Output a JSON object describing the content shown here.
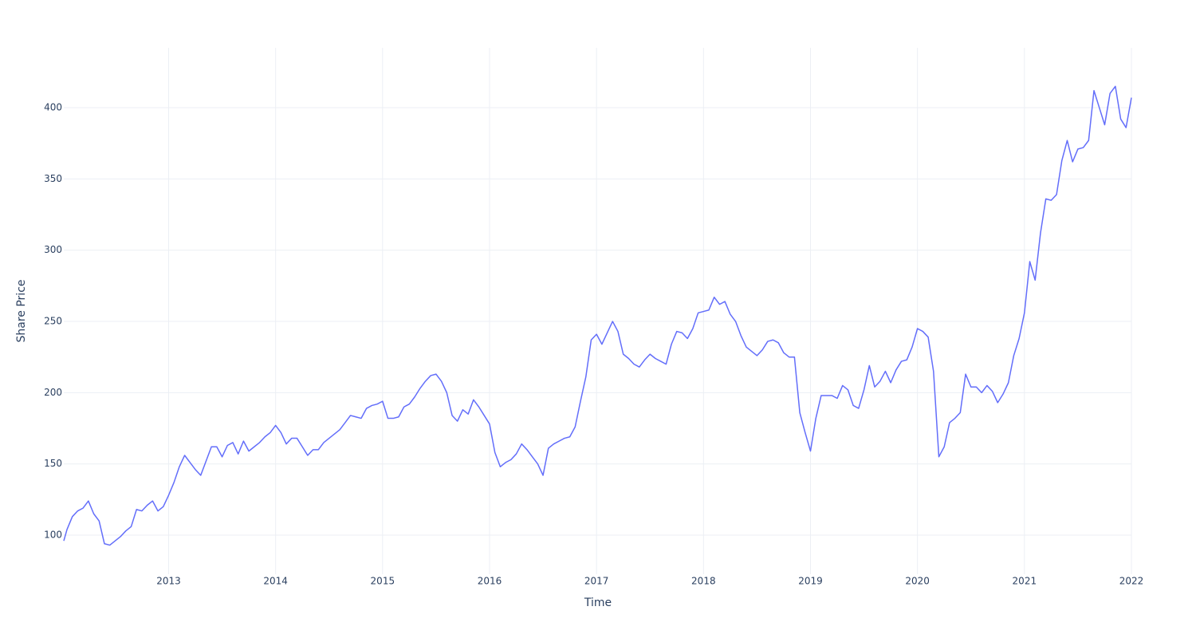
{
  "chart_data": {
    "type": "line",
    "xlabel": "Time",
    "ylabel": "Share Price",
    "color": "#636efa",
    "grid": true,
    "xlim": [
      2012.02,
      2022.0
    ],
    "ylim": [
      72.6,
      442
    ],
    "xticks": [
      2013,
      2014,
      2015,
      2016,
      2017,
      2018,
      2019,
      2020,
      2021,
      2022
    ],
    "yticks": [
      100,
      150,
      200,
      250,
      300,
      350,
      400
    ],
    "x": [
      2012.02,
      2012.05,
      2012.1,
      2012.15,
      2012.2,
      2012.25,
      2012.3,
      2012.35,
      2012.4,
      2012.45,
      2012.5,
      2012.55,
      2012.6,
      2012.65,
      2012.7,
      2012.75,
      2012.8,
      2012.85,
      2012.9,
      2012.95,
      2013.0,
      2013.05,
      2013.1,
      2013.15,
      2013.2,
      2013.25,
      2013.3,
      2013.35,
      2013.4,
      2013.45,
      2013.5,
      2013.55,
      2013.6,
      2013.65,
      2013.7,
      2013.75,
      2013.8,
      2013.85,
      2013.9,
      2013.95,
      2014.0,
      2014.05,
      2014.1,
      2014.15,
      2014.2,
      2014.25,
      2014.3,
      2014.35,
      2014.4,
      2014.45,
      2014.5,
      2014.55,
      2014.6,
      2014.65,
      2014.7,
      2014.75,
      2014.8,
      2014.85,
      2014.9,
      2014.95,
      2015.0,
      2015.05,
      2015.1,
      2015.15,
      2015.2,
      2015.25,
      2015.3,
      2015.35,
      2015.4,
      2015.45,
      2015.5,
      2015.55,
      2015.6,
      2015.65,
      2015.7,
      2015.75,
      2015.8,
      2015.85,
      2015.9,
      2015.95,
      2016.0,
      2016.05,
      2016.1,
      2016.15,
      2016.2,
      2016.25,
      2016.3,
      2016.35,
      2016.4,
      2016.45,
      2016.5,
      2016.55,
      2016.6,
      2016.65,
      2016.7,
      2016.75,
      2016.8,
      2016.85,
      2016.9,
      2016.95,
      2017.0,
      2017.05,
      2017.1,
      2017.15,
      2017.2,
      2017.25,
      2017.3,
      2017.35,
      2017.4,
      2017.45,
      2017.5,
      2017.55,
      2017.6,
      2017.65,
      2017.7,
      2017.75,
      2017.8,
      2017.85,
      2017.9,
      2017.95,
      2018.0,
      2018.05,
      2018.1,
      2018.15,
      2018.2,
      2018.25,
      2018.3,
      2018.35,
      2018.4,
      2018.45,
      2018.5,
      2018.55,
      2018.6,
      2018.65,
      2018.7,
      2018.75,
      2018.8,
      2018.85,
      2018.9,
      2018.95,
      2019.0,
      2019.05,
      2019.1,
      2019.15,
      2019.2,
      2019.25,
      2019.3,
      2019.35,
      2019.4,
      2019.45,
      2019.5,
      2019.55,
      2019.6,
      2019.65,
      2019.7,
      2019.75,
      2019.8,
      2019.85,
      2019.9,
      2019.95,
      2020.0,
      2020.05,
      2020.1,
      2020.15,
      2020.2,
      2020.25,
      2020.3,
      2020.35,
      2020.4,
      2020.45,
      2020.5,
      2020.55,
      2020.6,
      2020.65,
      2020.7,
      2020.75,
      2020.8,
      2020.85,
      2020.9,
      2020.95,
      2021.0,
      2021.05,
      2021.1,
      2021.15,
      2021.2,
      2021.25,
      2021.3,
      2021.35,
      2021.4,
      2021.45,
      2021.5,
      2021.55,
      2021.6,
      2021.65,
      2021.7,
      2021.75,
      2021.8,
      2021.85,
      2021.9,
      2021.95,
      2022.0
    ],
    "values": [
      96,
      104,
      113,
      117,
      119,
      124,
      115,
      110,
      94,
      93,
      96,
      99,
      103,
      106,
      118,
      117,
      121,
      124,
      117,
      120,
      128,
      137,
      148,
      156,
      151,
      146,
      142,
      152,
      162,
      162,
      155,
      163,
      165,
      157,
      166,
      159,
      162,
      165,
      169,
      172,
      177,
      172,
      164,
      168,
      168,
      162,
      156,
      160,
      160,
      165,
      168,
      171,
      174,
      179,
      184,
      183,
      182,
      189,
      191,
      192,
      194,
      182,
      182,
      183,
      190,
      192,
      197,
      203,
      208,
      212,
      213,
      208,
      200,
      184,
      180,
      188,
      185,
      195,
      190,
      184,
      178,
      158,
      148,
      151,
      153,
      157,
      164,
      160,
      155,
      150,
      142,
      161,
      164,
      166,
      168,
      169,
      176,
      194,
      211,
      237,
      241,
      234,
      242,
      250,
      243,
      227,
      224,
      220,
      218,
      223,
      227,
      224,
      222,
      220,
      234,
      243,
      242,
      238,
      245,
      256,
      257,
      258,
      267,
      262,
      264,
      255,
      250,
      240,
      232,
      229,
      226,
      230,
      236,
      237,
      235,
      228,
      225,
      225,
      186,
      172,
      159,
      182,
      198,
      198,
      198,
      196,
      205,
      202,
      191,
      189,
      202,
      219,
      204,
      208,
      215,
      207,
      216,
      222,
      223,
      232,
      245,
      243,
      239,
      215,
      155,
      162,
      179,
      182,
      186,
      213,
      204,
      204,
      200,
      205,
      201,
      193,
      199,
      207,
      226,
      238,
      256,
      292,
      279,
      312,
      336,
      335,
      339,
      363,
      377,
      362,
      371,
      372,
      377,
      412,
      400,
      388,
      410,
      415,
      392,
      386,
      407
    ]
  }
}
